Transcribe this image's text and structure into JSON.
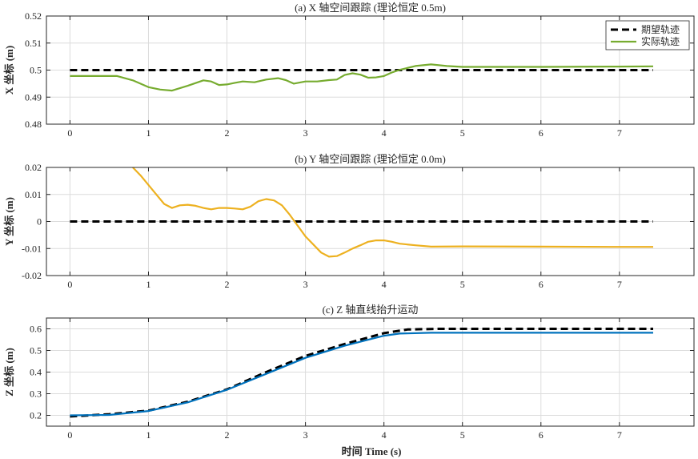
{
  "colors": {
    "desired": "#000000",
    "actual_x": "#77AC30",
    "actual_y": "#EDB120",
    "actual_z": "#0072BD",
    "grid": "#dcdcdc",
    "axis": "#262626"
  },
  "figure": {
    "xlabel": "时间 Time (s)"
  },
  "legend": {
    "entries": [
      "期望轨迹",
      "实际轨迹"
    ],
    "placement": "top-right of subplot (a)"
  },
  "chart_data": [
    {
      "type": "line",
      "title": "(a) X 轴空间跟踪 (理论恒定 0.5m)",
      "ylabel": "X 坐标 (m)",
      "xlim": [
        -0.3,
        7.95
      ],
      "ylim": [
        0.48,
        0.52
      ],
      "xticks": [
        0,
        1,
        2,
        3,
        4,
        5,
        6,
        7
      ],
      "xtick_labels": [
        "0",
        "1",
        "2",
        "3",
        "4",
        "5",
        "6",
        "7"
      ],
      "yticks": [
        0.48,
        0.49,
        0.5,
        0.51,
        0.52
      ],
      "ytick_labels": [
        "0.48",
        "0.49",
        "0.5",
        "0.51",
        "0.52"
      ],
      "grid": true,
      "legend_placement": "top-right",
      "series": [
        {
          "name": "期望轨迹",
          "style": "dashed",
          "x": [
            0,
            7.43
          ],
          "y": [
            0.5,
            0.5
          ]
        },
        {
          "name": "实际轨迹",
          "style": "solid",
          "x": [
            0,
            0.3,
            0.6,
            0.8,
            1.0,
            1.15,
            1.3,
            1.5,
            1.7,
            1.8,
            1.9,
            2.0,
            2.1,
            2.2,
            2.35,
            2.5,
            2.65,
            2.75,
            2.85,
            3.0,
            3.15,
            3.3,
            3.4,
            3.5,
            3.6,
            3.7,
            3.8,
            3.9,
            4.0,
            4.1,
            4.2,
            4.4,
            4.6,
            4.8,
            5.0,
            6.0,
            7.0,
            7.43
          ],
          "y": [
            0.4978,
            0.4978,
            0.4978,
            0.4962,
            0.4937,
            0.4928,
            0.4924,
            0.4942,
            0.4962,
            0.4958,
            0.4945,
            0.4947,
            0.4953,
            0.4958,
            0.4955,
            0.4965,
            0.497,
            0.4963,
            0.495,
            0.4958,
            0.4958,
            0.4963,
            0.4965,
            0.4982,
            0.4988,
            0.4983,
            0.4972,
            0.4973,
            0.4978,
            0.4991,
            0.5001,
            0.5015,
            0.5021,
            0.5015,
            0.5012,
            0.5012,
            0.5013,
            0.5014
          ]
        }
      ]
    },
    {
      "type": "line",
      "title": "(b) Y 轴空间跟踪 (理论恒定 0.0m)",
      "ylabel": "Y 坐标 (m)",
      "xlim": [
        -0.3,
        7.95
      ],
      "ylim": [
        -0.02,
        0.02
      ],
      "xticks": [
        0,
        1,
        2,
        3,
        4,
        5,
        6,
        7
      ],
      "xtick_labels": [
        "0",
        "1",
        "2",
        "3",
        "4",
        "5",
        "6",
        "7"
      ],
      "yticks": [
        -0.02,
        -0.01,
        0,
        0.01,
        0.02
      ],
      "ytick_labels": [
        "-0.02",
        "-0.01",
        "0",
        "0.01",
        "0.02"
      ],
      "grid": true,
      "series": [
        {
          "name": "期望轨迹",
          "style": "dashed",
          "x": [
            0,
            7.43
          ],
          "y": [
            0,
            0
          ]
        },
        {
          "name": "实际轨迹",
          "style": "solid",
          "x": [
            0.8,
            0.9,
            1.0,
            1.1,
            1.2,
            1.3,
            1.4,
            1.5,
            1.6,
            1.7,
            1.8,
            1.9,
            2.0,
            2.1,
            2.2,
            2.3,
            2.4,
            2.5,
            2.6,
            2.7,
            2.8,
            2.9,
            3.0,
            3.1,
            3.2,
            3.3,
            3.4,
            3.5,
            3.6,
            3.7,
            3.8,
            3.9,
            4.0,
            4.1,
            4.2,
            4.4,
            4.6,
            5.0,
            6.0,
            7.0,
            7.43
          ],
          "y": [
            0.02,
            0.017,
            0.0135,
            0.01,
            0.0065,
            0.005,
            0.006,
            0.0062,
            0.0058,
            0.005,
            0.0045,
            0.005,
            0.005,
            0.0048,
            0.0045,
            0.0055,
            0.0075,
            0.0083,
            0.0078,
            0.006,
            0.0025,
            -0.0015,
            -0.0055,
            -0.0085,
            -0.0115,
            -0.013,
            -0.0128,
            -0.0115,
            -0.01,
            -0.0088,
            -0.0075,
            -0.007,
            -0.007,
            -0.0075,
            -0.0082,
            -0.0088,
            -0.0093,
            -0.0092,
            -0.0093,
            -0.0094,
            -0.0094
          ]
        }
      ]
    },
    {
      "type": "line",
      "title": "(c) Z 轴直线抬升运动",
      "ylabel": "Z 坐标 (m)",
      "xlim": [
        -0.3,
        7.95
      ],
      "ylim": [
        0.15,
        0.65
      ],
      "xticks": [
        0,
        1,
        2,
        3,
        4,
        5,
        6,
        7
      ],
      "xtick_labels": [
        "0",
        "1",
        "2",
        "3",
        "4",
        "5",
        "6",
        "7"
      ],
      "yticks": [
        0.2,
        0.3,
        0.4,
        0.5,
        0.6
      ],
      "ytick_labels": [
        "0.2",
        "0.3",
        "0.4",
        "0.5",
        "0.6"
      ],
      "grid": true,
      "series": [
        {
          "name": "期望轨迹",
          "style": "dashed",
          "x": [
            0,
            0.5,
            1.0,
            1.5,
            2.0,
            2.5,
            3.0,
            3.5,
            4.0,
            4.3,
            4.7,
            5.0,
            6.0,
            7.0,
            7.43
          ],
          "y": [
            0.195,
            0.205,
            0.222,
            0.263,
            0.32,
            0.4,
            0.475,
            0.53,
            0.58,
            0.597,
            0.6,
            0.6,
            0.6,
            0.6,
            0.6
          ]
        },
        {
          "name": "实际轨迹",
          "style": "solid",
          "x": [
            0,
            0.5,
            1.0,
            1.5,
            2.0,
            2.5,
            3.0,
            3.5,
            4.0,
            4.2,
            4.6,
            5.0,
            6.0,
            7.0,
            7.43
          ],
          "y": [
            0.2,
            0.202,
            0.22,
            0.26,
            0.318,
            0.392,
            0.466,
            0.522,
            0.568,
            0.578,
            0.582,
            0.582,
            0.582,
            0.582,
            0.582
          ]
        }
      ]
    }
  ]
}
